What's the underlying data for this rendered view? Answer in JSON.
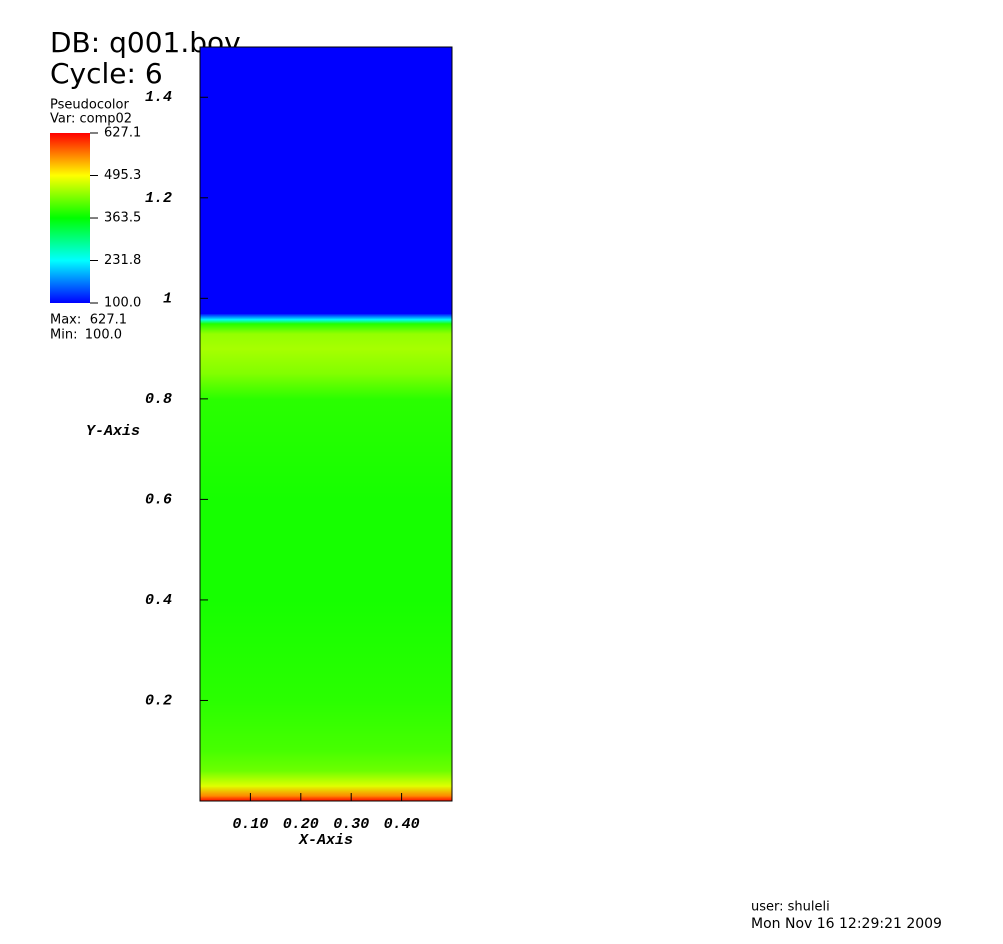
{
  "chart_data": {
    "type": "pseudocolor",
    "db": "DB: q001.bov",
    "cycle": "Cycle: 6",
    "xlabel": "X-Axis",
    "ylabel": "Y-Axis",
    "xlim": [
      0,
      0.5
    ],
    "ylim": [
      0,
      1.5
    ],
    "xticks": [
      {
        "value": 0.1,
        "label": "0.10"
      },
      {
        "value": 0.2,
        "label": "0.20"
      },
      {
        "value": 0.3,
        "label": "0.30"
      },
      {
        "value": 0.4,
        "label": "0.40"
      }
    ],
    "yticks": [
      0.2,
      0.4,
      0.6,
      0.8,
      1.0,
      1.2,
      1.4
    ],
    "y": [
      0,
      0.01,
      0.03,
      0.06,
      0.1,
      0.2,
      0.4,
      0.6,
      0.8,
      0.85,
      0.9,
      0.93,
      0.95,
      0.958,
      0.97,
      1.0
    ],
    "values": [
      627.1,
      560,
      480,
      420,
      400,
      385,
      375,
      375,
      385,
      430,
      450,
      440,
      380,
      231.8,
      100,
      100
    ],
    "legend": {
      "plot": "Pseudocolor",
      "var": "Var: comp02",
      "ticks": [
        {
          "value": 100,
          "label": "100.0"
        },
        {
          "value": 231.8,
          "label": "231.8"
        },
        {
          "value": 363.5,
          "label": "363.5"
        },
        {
          "value": 495.3,
          "label": "495.3"
        },
        {
          "value": 627.1,
          "label": "627.1"
        }
      ],
      "colormap": [
        "#0000ff",
        "#00ffff",
        "#00ff00",
        "#ffff00",
        "#ff0000"
      ],
      "max_prefix": "Max:",
      "max": {
        "value": 627.1,
        "label": "627.1"
      },
      "min_prefix": "Min:",
      "min": {
        "value": 100,
        "label": "100.0"
      }
    },
    "user": "user: shuleli",
    "date": "Mon Nov 16 12:29:21 2009"
  }
}
